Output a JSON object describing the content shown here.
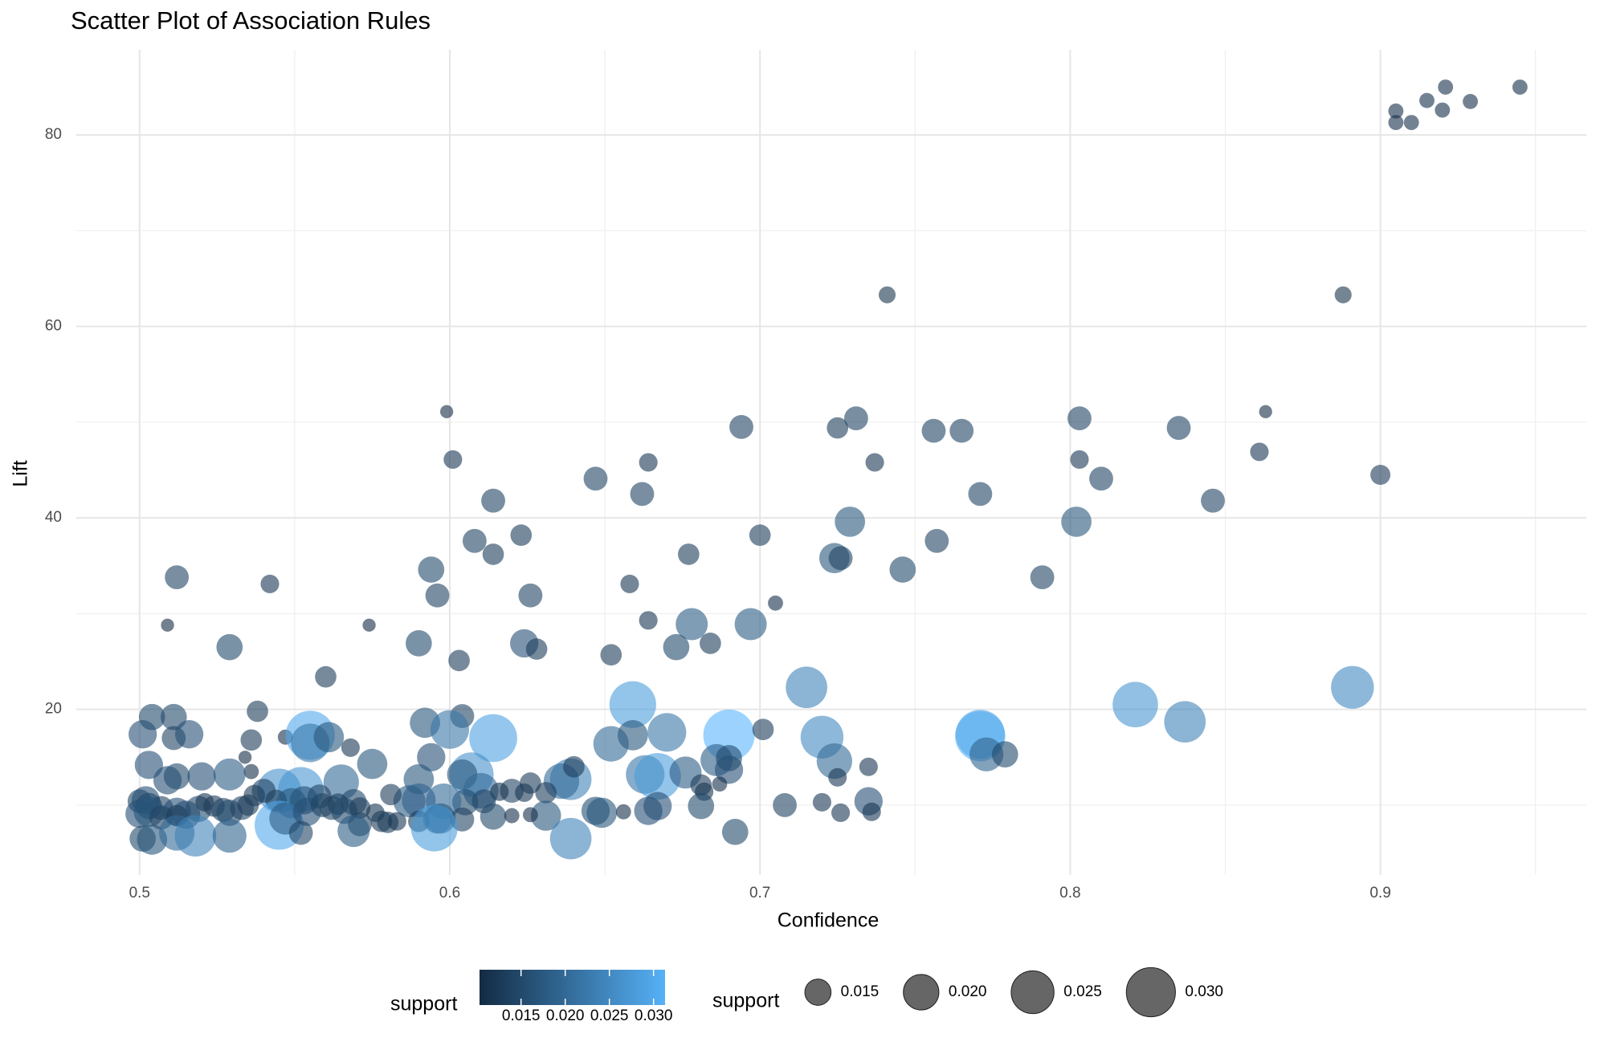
{
  "chart_data": {
    "type": "scatter",
    "title": "Scatter Plot of Association Rules",
    "x_label": "Confidence",
    "y_label": "Lift",
    "xlim": [
      0.4796,
      0.9664
    ],
    "xticks": [
      0.5,
      0.6,
      0.7,
      0.8,
      0.9
    ],
    "ylim": [
      2.7,
      88.9
    ],
    "yticks": [
      20,
      40,
      60,
      80
    ],
    "grid": true,
    "x": [
      0.905,
      0.905,
      0.91,
      0.915,
      0.92,
      0.921,
      0.929,
      0.945,
      0.741,
      0.888,
      0.599,
      0.863,
      0.694,
      0.725,
      0.731,
      0.756,
      0.765,
      0.803,
      0.835,
      0.601,
      0.664,
      0.737,
      0.803,
      0.861,
      0.9,
      0.647,
      0.662,
      0.614,
      0.771,
      0.81,
      0.846,
      0.729,
      0.802,
      0.608,
      0.623,
      0.7,
      0.757,
      0.614,
      0.677,
      0.724,
      0.726,
      0.746,
      0.512,
      0.542,
      0.594,
      0.596,
      0.626,
      0.658,
      0.791,
      0.705,
      0.509,
      0.574,
      0.664,
      0.678,
      0.697,
      0.529,
      0.59,
      0.624,
      0.628,
      0.652,
      0.673,
      0.684,
      0.603,
      0.56,
      0.715,
      0.891,
      0.659,
      0.821,
      0.504,
      0.511,
      0.538,
      0.604,
      0.592,
      0.6,
      0.837,
      0.501,
      0.511,
      0.516,
      0.547,
      0.555,
      0.555,
      0.561,
      0.568,
      0.614,
      0.652,
      0.659,
      0.67,
      0.69,
      0.701,
      0.72,
      0.771,
      0.771,
      0.536,
      0.503,
      0.534,
      0.536,
      0.529,
      0.52,
      0.512,
      0.509,
      0.575,
      0.594,
      0.607,
      0.604,
      0.565,
      0.59,
      0.545,
      0.552,
      0.54,
      0.537,
      0.544,
      0.61,
      0.62,
      0.616,
      0.624,
      0.611,
      0.605,
      0.598,
      0.59,
      0.587,
      0.581,
      0.569,
      0.564,
      0.558,
      0.553,
      0.549,
      0.639,
      0.636,
      0.64,
      0.626,
      0.631,
      0.663,
      0.667,
      0.676,
      0.686,
      0.69,
      0.69,
      0.681,
      0.682,
      0.687,
      0.724,
      0.725,
      0.773,
      0.779,
      0.735,
      0.5,
      0.502,
      0.503,
      0.507,
      0.512,
      0.515,
      0.519,
      0.521,
      0.524,
      0.527,
      0.529,
      0.533,
      0.535,
      0.5,
      0.503,
      0.507,
      0.512,
      0.545,
      0.547,
      0.554,
      0.559,
      0.562,
      0.566,
      0.571,
      0.576,
      0.578,
      0.58,
      0.583,
      0.59,
      0.596,
      0.597,
      0.604,
      0.614,
      0.62,
      0.631,
      0.626,
      0.571,
      0.569,
      0.552,
      0.501,
      0.504,
      0.512,
      0.518,
      0.529,
      0.595,
      0.639,
      0.692,
      0.647,
      0.649,
      0.656,
      0.664,
      0.667,
      0.681,
      0.708,
      0.72,
      0.726,
      0.735,
      0.736
    ],
    "values": [
      82.5,
      81.3,
      81.3,
      83.6,
      82.6,
      85,
      83.5,
      85,
      63.3,
      63.3,
      51.1,
      51.1,
      49.5,
      49.4,
      50.4,
      49.1,
      49.1,
      50.4,
      49.4,
      46.1,
      45.8,
      45.8,
      46.1,
      46.9,
      44.5,
      44.1,
      42.5,
      41.8,
      42.5,
      44.1,
      41.8,
      39.6,
      39.6,
      37.6,
      38.2,
      38.2,
      37.6,
      36.2,
      36.2,
      35.8,
      35.8,
      34.6,
      33.8,
      33.1,
      34.6,
      31.9,
      31.9,
      33.1,
      33.8,
      31.1,
      28.8,
      28.8,
      29.3,
      28.9,
      28.9,
      26.5,
      26.9,
      26.9,
      26.3,
      25.7,
      26.5,
      26.9,
      25.1,
      23.4,
      22.3,
      22.3,
      20.5,
      20.5,
      19.2,
      19.2,
      19.8,
      19.3,
      18.6,
      17.9,
      18.7,
      17.4,
      17,
      17.4,
      17.1,
      17.3,
      16.5,
      17.1,
      16,
      17,
      16.4,
      17.3,
      17.6,
      17.3,
      17.9,
      17.1,
      17.2,
      17.4,
      16.8,
      14.2,
      15,
      13.5,
      13.2,
      13,
      13,
      12.6,
      14.3,
      15,
      13.2,
      13.2,
      12.4,
      12.7,
      11.5,
      11.6,
      11.5,
      11,
      10.5,
      11.5,
      11.5,
      11.4,
      11.3,
      10.4,
      10.3,
      10.4,
      10.5,
      10.4,
      11.1,
      10.3,
      10.1,
      10.9,
      10.5,
      10.2,
      12.7,
      12.5,
      14,
      12.3,
      11.3,
      13.2,
      13,
      13.4,
      14.7,
      14.9,
      13.7,
      12.1,
      11.4,
      12.2,
      14.6,
      12.9,
      15.3,
      15.3,
      14,
      10.4,
      10.5,
      9.9,
      9.7,
      9.3,
      9,
      9.6,
      10.3,
      9.9,
      9.5,
      9.2,
      9.7,
      10,
      9.1,
      9.3,
      8.7,
      8.9,
      7.9,
      8.6,
      9.3,
      10,
      9.7,
      9.4,
      9.7,
      9.2,
      8.3,
      8.2,
      8.3,
      8.3,
      8.5,
      8.6,
      8.5,
      8.8,
      8.9,
      8.9,
      9,
      8,
      7.3,
      7.1,
      6.5,
      6.4,
      7.1,
      6.8,
      6.8,
      7.6,
      6.5,
      7.2,
      9.4,
      9.2,
      9.3,
      9.4,
      9.9,
      9.9,
      10,
      10.3,
      9.2,
      10.4,
      9.3
    ],
    "sizes": [
      0.011,
      0.011,
      0.011,
      0.011,
      0.011,
      0.011,
      0.011,
      0.011,
      0.0115,
      0.0115,
      0.0105,
      0.0105,
      0.014,
      0.013,
      0.014,
      0.014,
      0.014,
      0.014,
      0.014,
      0.012,
      0.012,
      0.012,
      0.012,
      0.012,
      0.0125,
      0.014,
      0.014,
      0.014,
      0.014,
      0.014,
      0.014,
      0.017,
      0.017,
      0.014,
      0.013,
      0.013,
      0.014,
      0.013,
      0.013,
      0.017,
      0.014,
      0.015,
      0.014,
      0.012,
      0.015,
      0.014,
      0.014,
      0.012,
      0.014,
      0.011,
      0.0105,
      0.0105,
      0.012,
      0.018,
      0.018,
      0.015,
      0.015,
      0.016,
      0.013,
      0.013,
      0.015,
      0.013,
      0.013,
      0.013,
      0.024,
      0.025,
      0.028,
      0.027,
      0.015,
      0.015,
      0.013,
      0.014,
      0.017,
      0.022,
      0.024,
      0.016,
      0.014,
      0.016,
      0.011,
      0.03,
      0.022,
      0.017,
      0.012,
      0.029,
      0.02,
      0.017,
      0.022,
      0.032,
      0.013,
      0.025,
      0.031,
      0.03,
      0.013,
      0.016,
      0.0105,
      0.011,
      0.018,
      0.016,
      0.015,
      0.016,
      0.017,
      0.016,
      0.026,
      0.017,
      0.02,
      0.017,
      0.026,
      0.027,
      0.014,
      0.013,
      0.013,
      0.02,
      0.014,
      0.012,
      0.012,
      0.014,
      0.015,
      0.02,
      0.019,
      0.018,
      0.013,
      0.015,
      0.013,
      0.014,
      0.016,
      0.017,
      0.024,
      0.02,
      0.013,
      0.013,
      0.013,
      0.022,
      0.028,
      0.018,
      0.018,
      0.015,
      0.016,
      0.013,
      0.012,
      0.011,
      0.02,
      0.012,
      0.019,
      0.015,
      0.012,
      0.014,
      0.016,
      0.015,
      0.014,
      0.016,
      0.016,
      0.015,
      0.012,
      0.013,
      0.014,
      0.015,
      0.014,
      0.013,
      0.016,
      0.017,
      0.014,
      0.013,
      0.03,
      0.018,
      0.016,
      0.014,
      0.014,
      0.015,
      0.013,
      0.012,
      0.013,
      0.013,
      0.012,
      0.013,
      0.016,
      0.017,
      0.014,
      0.015,
      0.011,
      0.017,
      0.011,
      0.014,
      0.018,
      0.014,
      0.015,
      0.017,
      0.02,
      0.024,
      0.019,
      0.028,
      0.024,
      0.015,
      0.016,
      0.017,
      0.011,
      0.016,
      0.016,
      0.015,
      0.014,
      0.012,
      0.012,
      0.016,
      0.012
    ],
    "size_lim": [
      0.0103,
      0.0313
    ],
    "color_low": "#132B43",
    "color_high": "#56B1F7",
    "color_legend": {
      "title": "support",
      "ticks": [
        {
          "value": 0.015,
          "label": "0.015"
        },
        {
          "value": 0.02,
          "label": "0.020"
        },
        {
          "value": 0.025,
          "label": "0.025"
        },
        {
          "value": 0.03,
          "label": "0.030"
        }
      ]
    },
    "size_legend": {
      "title": "support",
      "color": "#333333",
      "ticks": [
        {
          "value": 0.015,
          "label": "0.015"
        },
        {
          "value": 0.02,
          "label": "0.020"
        },
        {
          "value": 0.025,
          "label": "0.025"
        },
        {
          "value": 0.03,
          "label": "0.030"
        }
      ]
    }
  }
}
